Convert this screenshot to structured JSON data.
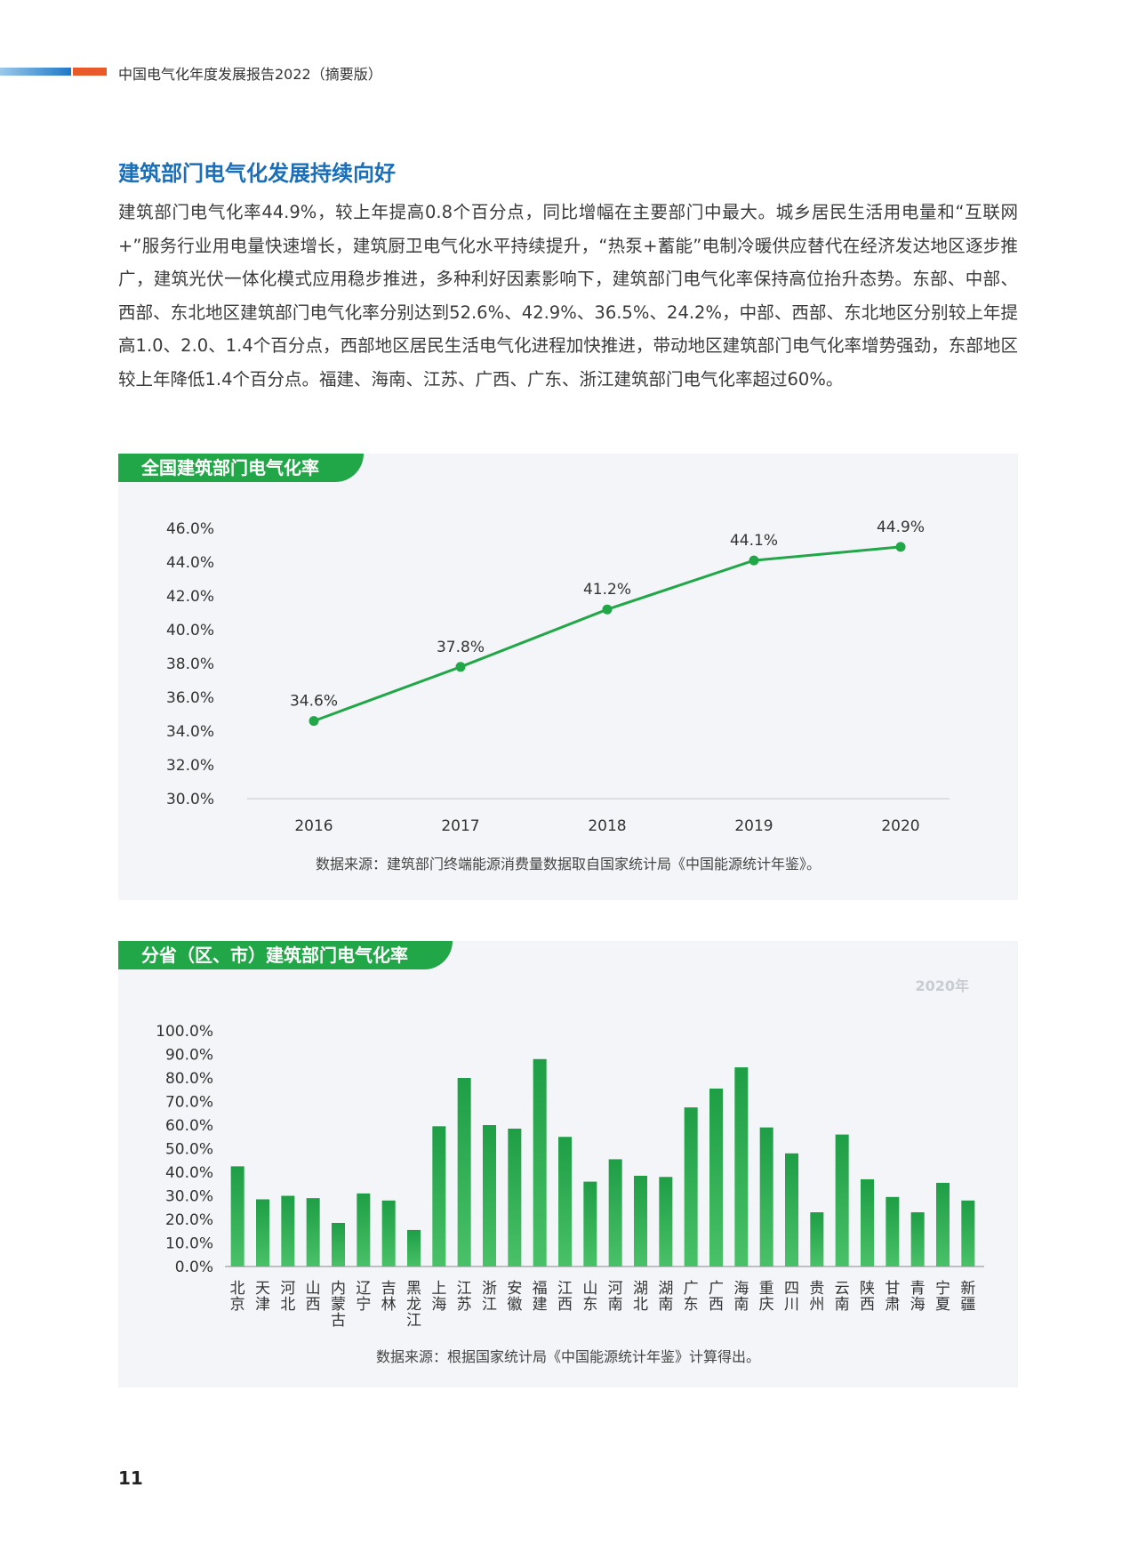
{
  "header": {
    "title": "中国电气化年度发展报告2022（摘要版）"
  },
  "section": {
    "title": "建筑部门电气化发展持续向好",
    "body": "建筑部门电气化率44.9%，较上年提高0.8个百分点，同比增幅在主要部门中最大。城乡居民生活用电量和“互联网+”服务行业用电量快速增长，建筑厨卫电气化水平持续提升，“热泵+蓄能”电制冷暖供应替代在经济发达地区逐步推广，建筑光伏一体化模式应用稳步推进，多种利好因素影响下，建筑部门电气化率保持高位抬升态势。东部、中部、西部、东北地区建筑部门电气化率分别达到52.6%、42.9%、36.5%、24.2%，中部、西部、东北地区分别较上年提高1.0、2.0、1.4个百分点，西部地区居民生活电气化进程加快推进，带动地区建筑部门电气化率增势强劲，东部地区较上年降低1.4个百分点。福建、海南、江苏、广西、广东、浙江建筑部门电气化率超过60%。"
  },
  "chart1": {
    "tag": "全国建筑部门电气化率",
    "source": "数据来源：建筑部门终端能源消费量数据取自国家统计局《中国能源统计年鉴》。"
  },
  "chart2": {
    "tag": "分省（区、市）建筑部门电气化率",
    "year_note": "2020年",
    "source": "数据来源：根据国家统计局《中国能源统计年鉴》计算得出。"
  },
  "page_number": "11",
  "chart_data": [
    {
      "type": "line",
      "title": "全国建筑部门电气化率",
      "x": [
        "2016",
        "2017",
        "2018",
        "2019",
        "2020"
      ],
      "values": [
        34.6,
        37.8,
        41.2,
        44.1,
        44.9
      ],
      "data_labels": [
        "34.6%",
        "37.8%",
        "41.2%",
        "44.1%",
        "44.9%"
      ],
      "ylim": [
        30,
        46
      ],
      "yticks": [
        "30.0%",
        "32.0%",
        "34.0%",
        "36.0%",
        "38.0%",
        "40.0%",
        "42.0%",
        "44.0%",
        "46.0%"
      ],
      "color": "#22a748",
      "grid": false
    },
    {
      "type": "bar",
      "title": "分省（区、市）建筑部门电气化率",
      "categories": [
        "北京",
        "天津",
        "河北",
        "山西",
        "内蒙古",
        "辽宁",
        "吉林",
        "黑龙江",
        "上海",
        "江苏",
        "浙江",
        "安徽",
        "福建",
        "江西",
        "山东",
        "河南",
        "湖北",
        "湖南",
        "广东",
        "广西",
        "海南",
        "重庆",
        "四川",
        "贵州",
        "云南",
        "陕西",
        "甘肃",
        "青海",
        "宁夏",
        "新疆"
      ],
      "values": [
        42.5,
        28.5,
        30.0,
        29.0,
        18.5,
        31.0,
        28.0,
        15.5,
        59.5,
        80.0,
        60.0,
        58.5,
        88.0,
        55.0,
        36.0,
        45.5,
        38.5,
        38.0,
        67.5,
        75.5,
        84.5,
        59.0,
        48.0,
        23.0,
        56.0,
        37.0,
        29.5,
        23.0,
        35.5,
        28.0
      ],
      "ylim": [
        0,
        100
      ],
      "yticks": [
        "0.0%",
        "10.0%",
        "20.0%",
        "30.0%",
        "40.0%",
        "50.0%",
        "60.0%",
        "70.0%",
        "80.0%",
        "90.0%",
        "100.0%"
      ],
      "color": "#22a748",
      "grid": false
    }
  ]
}
